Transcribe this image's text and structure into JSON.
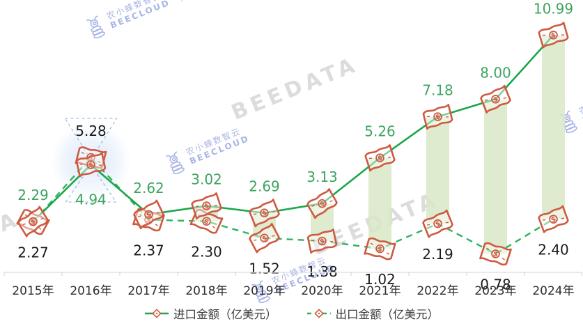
{
  "watermarks": {
    "brand_cn": "农小蜂数智云",
    "brand_en": "BEECLOUD",
    "data_brand": "BEEDATA"
  },
  "colors": {
    "import_line": "#1ca64b",
    "export_line": "#2eb457",
    "import_label": "#3da45f",
    "export_label": "#1a1a1a",
    "marker_stroke": "#cd5a41",
    "bar_fill": "#d8e7c6",
    "annotation_blue": "#85aede",
    "watermark_blue": "#a9b4e6",
    "watermark_gray": "#dcdcdc"
  },
  "legend": {
    "items": [
      {
        "label": "进口金额（亿美元）",
        "style": "solid"
      },
      {
        "label": "出口金额（亿美元）",
        "style": "dashed"
      }
    ]
  },
  "chart_data": {
    "type": "line",
    "categories": [
      "2015年",
      "2016年",
      "2017年",
      "2018年",
      "2019年",
      "2020年",
      "2021年",
      "2022年",
      "2023年",
      "2024年"
    ],
    "series": [
      {
        "name": "进口金额（亿美元）",
        "line": "solid",
        "values": [
          2.29,
          4.94,
          2.62,
          3.02,
          2.69,
          3.13,
          5.26,
          7.18,
          8.0,
          10.99
        ],
        "labels": [
          "2.29",
          "4.94",
          "2.62",
          "3.02",
          "2.69",
          "3.13",
          "5.26",
          "7.18",
          "8.00",
          "10.99"
        ]
      },
      {
        "name": "出口金额（亿美元）",
        "line": "dashed",
        "values": [
          2.27,
          5.28,
          2.37,
          2.3,
          1.52,
          1.38,
          1.02,
          2.19,
          0.78,
          2.4
        ],
        "labels": [
          "2.27",
          "5.28",
          "2.37",
          "2.30",
          "1.52",
          "1.38",
          "1.02",
          "2.19",
          "0.78",
          "2.40"
        ]
      }
    ],
    "ylim": [
      0,
      12
    ],
    "grid": false,
    "legend_position": "bottom",
    "annotation": {
      "category": "2016年",
      "shape": "dashed-hourglass-highlight",
      "highlighted_values": [
        "5.28",
        "4.94"
      ]
    },
    "extra_marks": "light green vertical bars span the gap between import and export values each year; data point markers are orange banknote icons with $ sign"
  }
}
